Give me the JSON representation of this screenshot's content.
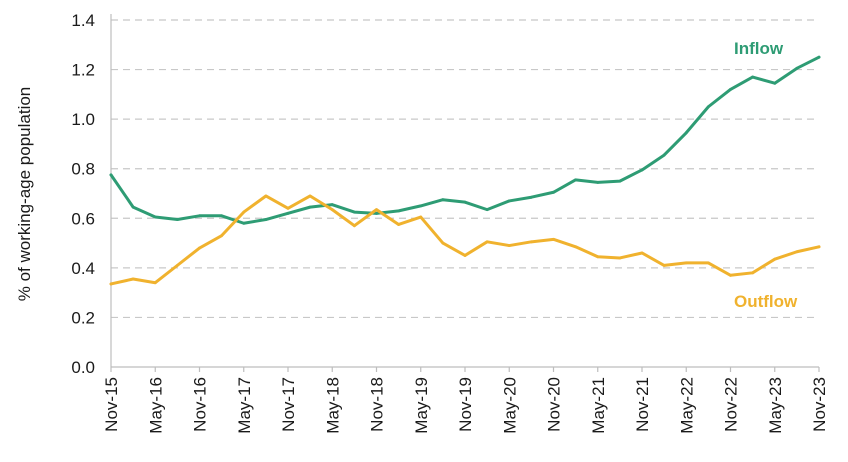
{
  "chart_data": {
    "type": "line",
    "ylabel": "% of working-age population",
    "xlabel": "",
    "ylim": [
      0,
      1.4
    ],
    "yticks": [
      "0.0",
      "0.2",
      "0.4",
      "0.6",
      "0.8",
      "1.0",
      "1.2",
      "1.4"
    ],
    "xticks": [
      "Nov-15",
      "May-16",
      "Nov-16",
      "May-17",
      "Nov-17",
      "May-18",
      "Nov-18",
      "May-19",
      "Nov-19",
      "May-20",
      "Nov-20",
      "May-21",
      "Nov-21",
      "May-22",
      "Nov-22",
      "May-23",
      "Nov-23"
    ],
    "grid": "horizontal dashed",
    "legend": "inline labels at top-right",
    "series": [
      {
        "name": "Inflow",
        "color": "#2e9c74",
        "values": [
          0.775,
          0.645,
          0.605,
          0.595,
          0.61,
          0.61,
          0.58,
          0.595,
          0.62,
          0.645,
          0.655,
          0.625,
          0.62,
          0.63,
          0.65,
          0.675,
          0.665,
          0.635,
          0.67,
          0.685,
          0.705,
          0.755,
          0.745,
          0.75,
          0.795,
          0.855,
          0.945,
          1.05,
          1.12,
          1.17,
          1.145,
          1.205,
          1.25
        ]
      },
      {
        "name": "Outflow",
        "color": "#f0b22e",
        "values": [
          0.335,
          0.355,
          0.34,
          0.41,
          0.48,
          0.53,
          0.625,
          0.69,
          0.64,
          0.69,
          0.635,
          0.57,
          0.635,
          0.575,
          0.605,
          0.5,
          0.45,
          0.505,
          0.49,
          0.505,
          0.515,
          0.485,
          0.445,
          0.44,
          0.46,
          0.41,
          0.42,
          0.42,
          0.37,
          0.38,
          0.435,
          0.465,
          0.485
        ]
      }
    ]
  }
}
